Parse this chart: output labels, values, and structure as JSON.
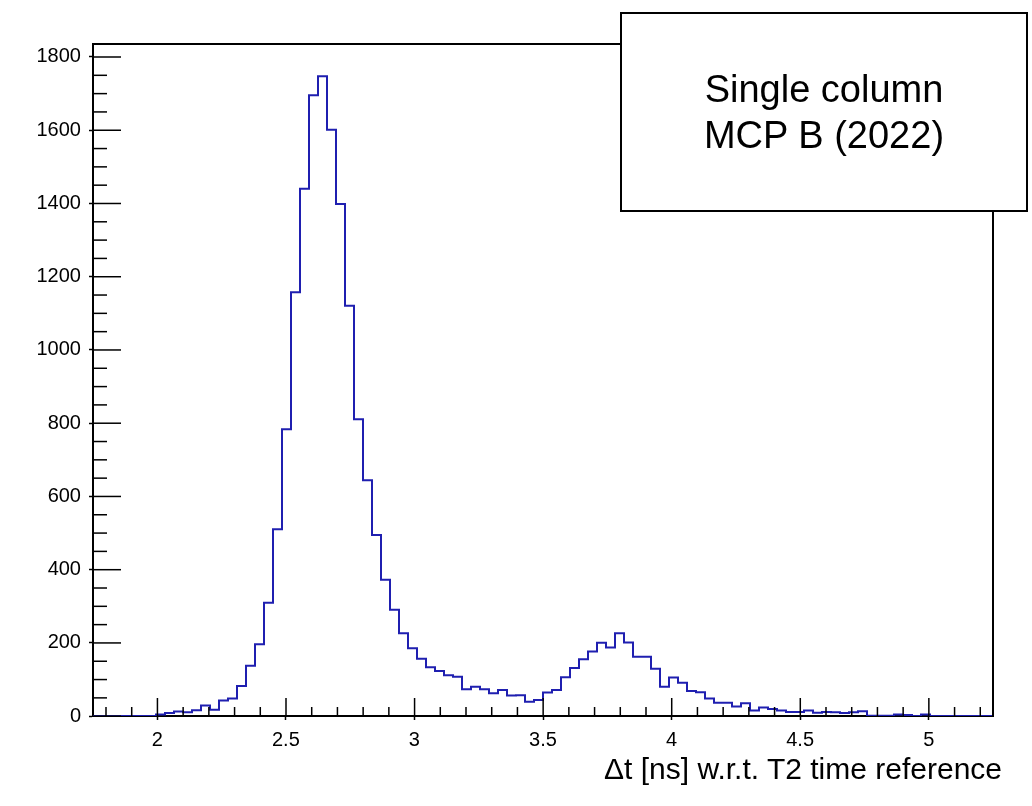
{
  "chart_data": {
    "type": "histogram",
    "xlabel": "Δt [ns] w.r.t. T2 time reference",
    "annotations": [
      "Single column",
      "MCP B (2022)"
    ],
    "color": "#1f1fb0",
    "bins": [
      1.75,
      1.785,
      1.82,
      1.855,
      1.89,
      1.925,
      1.96,
      1.995,
      2.03,
      2.065,
      2.1,
      2.135,
      2.17,
      2.205,
      2.24,
      2.275,
      2.31,
      2.345,
      2.38,
      2.415,
      2.45,
      2.485,
      2.52,
      2.555,
      2.59,
      2.625,
      2.66,
      2.695,
      2.73,
      2.765,
      2.8,
      2.835,
      2.87,
      2.905,
      2.94,
      2.975,
      3.01,
      3.045,
      3.08,
      3.115,
      3.15,
      3.185,
      3.22,
      3.255,
      3.29,
      3.325,
      3.36,
      3.395,
      3.43,
      3.465,
      3.5,
      3.535,
      3.57,
      3.605,
      3.64,
      3.675,
      3.71,
      3.745,
      3.78,
      3.815,
      3.85,
      3.885,
      3.92,
      3.955,
      3.99,
      4.025,
      4.06,
      4.095,
      4.13,
      4.165,
      4.2,
      4.235,
      4.27,
      4.305,
      4.34,
      4.375,
      4.41,
      4.445,
      4.48,
      4.515,
      4.55,
      4.585,
      4.62,
      4.655,
      4.69,
      4.725,
      4.76,
      4.795,
      4.83,
      4.865,
      4.9,
      4.935,
      4.97,
      5.005,
      5.04,
      5.075,
      5.11,
      5.145,
      5.18,
      5.215,
      5.25
    ],
    "values": [
      0,
      0,
      0,
      0,
      0,
      0,
      0,
      4,
      8,
      12,
      10,
      16,
      29,
      17,
      42,
      48,
      82,
      137,
      196,
      309,
      510,
      783,
      1157,
      1440,
      1695,
      1747,
      1601,
      1398,
      1120,
      810,
      644,
      494,
      372,
      290,
      226,
      185,
      156,
      133,
      123,
      111,
      107,
      73,
      80,
      73,
      62,
      71,
      56,
      57,
      39,
      44,
      64,
      71,
      106,
      131,
      155,
      176,
      200,
      187,
      226,
      201,
      162,
      162,
      129,
      80,
      105,
      91,
      68,
      65,
      48,
      36,
      36,
      26,
      35,
      15,
      23,
      19,
      15,
      11,
      11,
      15,
      9,
      11,
      10,
      8,
      10,
      13,
      1,
      1,
      1,
      4,
      3,
      0,
      4,
      0,
      0,
      0,
      0,
      0,
      0,
      0
    ],
    "xlim": [
      1.75,
      5.25
    ],
    "xticks": [
      2,
      2.5,
      3,
      3.5,
      4,
      4.5,
      5
    ],
    "ylim": [
      0,
      1835
    ],
    "yticks": [
      0,
      200,
      400,
      600,
      800,
      1000,
      1200,
      1400,
      1600,
      1800
    ]
  }
}
